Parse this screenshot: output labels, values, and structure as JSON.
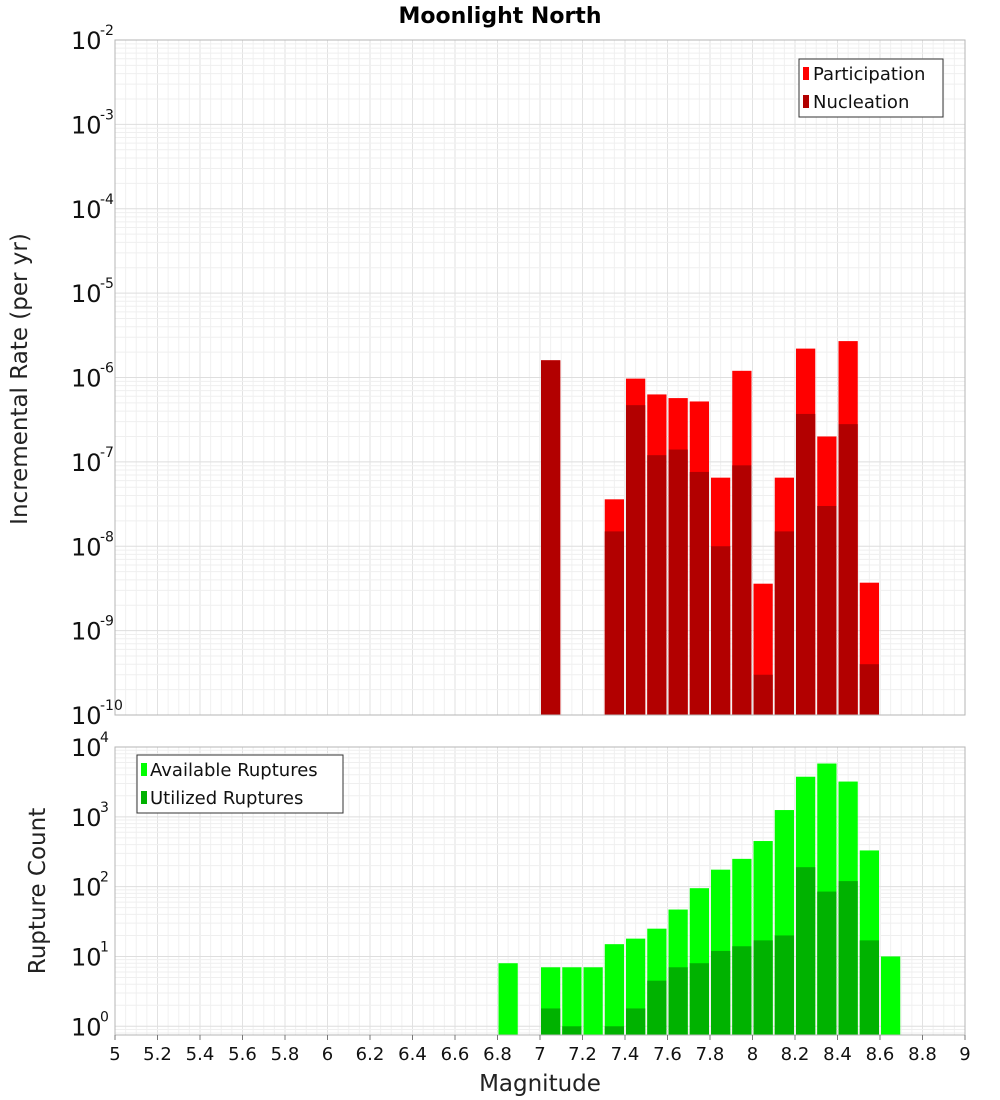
{
  "chart_data": [
    {
      "type": "bar",
      "title": "Moonlight North",
      "xlabel": "",
      "ylabel": "Incremental Rate (per yr)",
      "xlim": [
        5,
        9
      ],
      "ylim": [
        1e-10,
        0.01
      ],
      "yscale": "log",
      "yticks": [
        {
          "base": "10",
          "exp": "-10",
          "value": 1e-10
        },
        {
          "base": "10",
          "exp": "-9",
          "value": 1e-09
        },
        {
          "base": "10",
          "exp": "-8",
          "value": 1e-08
        },
        {
          "base": "10",
          "exp": "-7",
          "value": 1e-07
        },
        {
          "base": "10",
          "exp": "-6",
          "value": 1e-06
        },
        {
          "base": "10",
          "exp": "-5",
          "value": 1e-05
        },
        {
          "base": "10",
          "exp": "-4",
          "value": 0.0001
        },
        {
          "base": "10",
          "exp": "-3",
          "value": 0.001
        },
        {
          "base": "10",
          "exp": "-2",
          "value": 0.01
        }
      ],
      "grid": true,
      "legend_position": "top-right",
      "x": [
        7.05,
        7.35,
        7.45,
        7.55,
        7.65,
        7.75,
        7.85,
        7.95,
        8.05,
        8.15,
        8.25,
        8.35,
        8.45,
        8.55
      ],
      "series": [
        {
          "name": "Participation",
          "color": "#ff0000",
          "values": [
            1.6e-06,
            3.6e-08,
            9.7e-07,
            6.3e-07,
            5.7e-07,
            5.2e-07,
            6.5e-08,
            1.2e-06,
            3.6e-09,
            6.5e-08,
            2.2e-06,
            2e-07,
            2.7e-06,
            3.7e-09
          ]
        },
        {
          "name": "Nucleation",
          "color": "#b20000",
          "values": [
            1.6e-06,
            1.5e-08,
            4.7e-07,
            1.2e-07,
            1.4e-07,
            7.6e-08,
            1e-08,
            9.1e-08,
            3e-10,
            1.5e-08,
            3.7e-07,
            3e-08,
            2.8e-07,
            4e-10
          ]
        }
      ]
    },
    {
      "type": "bar",
      "title": "",
      "xlabel": "Magnitude",
      "ylabel": "Rupture Count",
      "xlim": [
        5,
        9
      ],
      "ylim": [
        0.75,
        10000
      ],
      "yscale": "log",
      "yticks": [
        {
          "base": "10",
          "exp": "0",
          "value": 1
        },
        {
          "base": "10",
          "exp": "1",
          "value": 10
        },
        {
          "base": "10",
          "exp": "2",
          "value": 100
        },
        {
          "base": "10",
          "exp": "3",
          "value": 1000
        },
        {
          "base": "10",
          "exp": "4",
          "value": 10000
        }
      ],
      "xticks": [
        "5",
        "5.2",
        "5.4",
        "5.6",
        "5.8",
        "6",
        "6.2",
        "6.4",
        "6.6",
        "6.8",
        "7",
        "7.2",
        "7.4",
        "7.6",
        "7.8",
        "8",
        "8.2",
        "8.4",
        "8.6",
        "8.8",
        "9"
      ],
      "grid": true,
      "legend_position": "top-left",
      "x": [
        6.85,
        7.05,
        7.15,
        7.25,
        7.35,
        7.45,
        7.55,
        7.65,
        7.75,
        7.85,
        7.95,
        8.05,
        8.15,
        8.25,
        8.35,
        8.45,
        8.55,
        8.65
      ],
      "series": [
        {
          "name": "Available Ruptures",
          "color": "#00ff00",
          "values": [
            8,
            7,
            7,
            7,
            15,
            18,
            25,
            47,
            95,
            175,
            250,
            450,
            1250,
            3750,
            5800,
            3200,
            330,
            10
          ]
        },
        {
          "name": "Utilized Ruptures",
          "color": "#00b200",
          "values": [
            null,
            1.8,
            1,
            null,
            1,
            1.8,
            4.5,
            7,
            8,
            12,
            14,
            17,
            20,
            190,
            85,
            120,
            17,
            null
          ]
        }
      ]
    }
  ]
}
